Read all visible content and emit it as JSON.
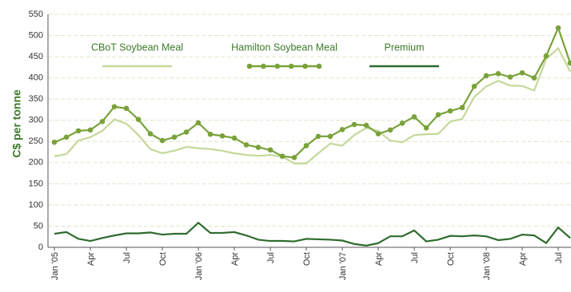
{
  "chart_data": {
    "type": "line",
    "y_label": "C$ per tonne",
    "categories": [
      "Jan '05",
      null,
      null,
      "Apr",
      null,
      null,
      "Jul",
      null,
      null,
      "Oct",
      null,
      null,
      "Jan '06",
      null,
      null,
      "Apr",
      null,
      null,
      "Jul",
      null,
      null,
      "Oct",
      null,
      null,
      "Jan '07",
      null,
      null,
      "Apr",
      null,
      null,
      "Jul",
      null,
      null,
      "Oct",
      null,
      null,
      "Jan '08",
      null,
      null,
      "Apr",
      null,
      null,
      "Jul",
      null
    ],
    "series": [
      {
        "name": "CBoT Soybean Meal",
        "color": "#c5d89a",
        "values": [
          215,
          220,
          252,
          260,
          275,
          302,
          292,
          265,
          232,
          222,
          228,
          237,
          234,
          232,
          228,
          222,
          218,
          216,
          218,
          214,
          198,
          198,
          222,
          245,
          240,
          265,
          282,
          275,
          252,
          248,
          265,
          267,
          268,
          297,
          303,
          355,
          380,
          393,
          382,
          381,
          370,
          445,
          470,
          415
        ]
      },
      {
        "name": "Hamilton Soybean Meal",
        "color": "#7aa23a",
        "markers": true,
        "values": [
          248,
          260,
          275,
          277,
          297,
          332,
          328,
          302,
          268,
          252,
          260,
          272,
          294,
          267,
          263,
          258,
          242,
          236,
          230,
          215,
          212,
          240,
          262,
          262,
          278,
          290,
          288,
          268,
          277,
          293,
          308,
          282,
          313,
          322,
          330,
          380,
          405,
          410,
          402,
          412,
          400,
          452,
          518,
          435
        ]
      },
      {
        "name": "Premium",
        "color": "#2e6b2e",
        "values": [
          32,
          36,
          20,
          15,
          22,
          28,
          33,
          33,
          35,
          30,
          32,
          32,
          58,
          34,
          34,
          36,
          28,
          18,
          15,
          15,
          14,
          20,
          19,
          18,
          16,
          8,
          4,
          10,
          26,
          26,
          40,
          14,
          18,
          27,
          26,
          28,
          26,
          17,
          20,
          30,
          28,
          10,
          47,
          22
        ]
      }
    ],
    "ylim": [
      0,
      550
    ],
    "yticks": [
      0,
      50,
      100,
      150,
      200,
      250,
      300,
      350,
      400,
      450,
      500,
      550
    ],
    "grid": true
  }
}
